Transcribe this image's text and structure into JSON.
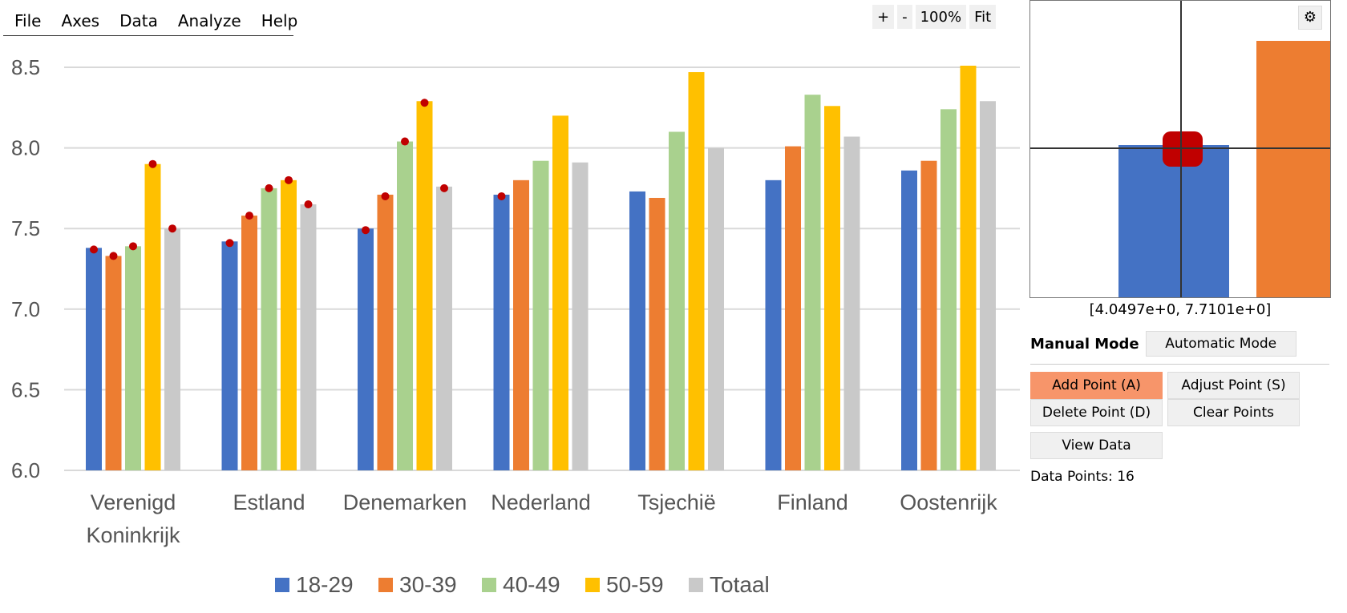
{
  "menu": {
    "items": [
      "File",
      "Axes",
      "Data",
      "Analyze",
      "Help"
    ]
  },
  "zoom": {
    "plus": "+",
    "minus": "-",
    "level": "100%",
    "fit": "Fit"
  },
  "loupe": {
    "settings_icon": "gear-icon",
    "settings_glyph": "⚙"
  },
  "coords": "[4.0497e+0, 7.7101e+0]",
  "mode": {
    "manual_label": "Manual Mode",
    "automatic_button": "Automatic Mode"
  },
  "buttons": {
    "add_point": "Add Point (A)",
    "adjust_point": "Adjust Point (S)",
    "delete_point": "Delete Point (D)",
    "clear_points": "Clear Points",
    "view_data": "View Data"
  },
  "status": {
    "data_points": "Data Points: 16"
  },
  "colors": {
    "accent_active": "#f7956a",
    "marker": "#c00000"
  },
  "chart_data": {
    "type": "bar",
    "categories": [
      [
        "Verenigd",
        "Koninkrijk"
      ],
      [
        "Estland"
      ],
      [
        "Denemarken"
      ],
      [
        "Nederland"
      ],
      [
        "Tsjechië"
      ],
      [
        "Finland"
      ],
      [
        "Oostenrijk"
      ]
    ],
    "series": [
      {
        "name": "18-29",
        "color": "#4472c4",
        "values": [
          7.38,
          7.42,
          7.5,
          7.71,
          7.73,
          7.8,
          7.86
        ]
      },
      {
        "name": "30-39",
        "color": "#ed7d31",
        "values": [
          7.33,
          7.58,
          7.71,
          7.8,
          7.69,
          8.01,
          7.92
        ]
      },
      {
        "name": "40-49",
        "color": "#a9d18e",
        "values": [
          7.39,
          7.75,
          8.04,
          7.92,
          8.1,
          8.33,
          8.24
        ]
      },
      {
        "name": "50-59",
        "color": "#ffc000",
        "values": [
          7.9,
          7.8,
          8.29,
          8.2,
          8.47,
          8.26,
          8.51
        ]
      },
      {
        "name": "Totaal",
        "color": "#c9c9c9",
        "values": [
          7.5,
          7.65,
          7.76,
          7.91,
          8.0,
          8.07,
          8.29
        ]
      }
    ],
    "ylim": [
      6.0,
      8.5
    ],
    "yticks": [
      "6.0",
      "6.5",
      "7.0",
      "7.5",
      "8.0",
      "8.5"
    ],
    "grid": true,
    "legend": "bottom",
    "markers": [
      {
        "category": 0,
        "series": 0,
        "value": 7.37
      },
      {
        "category": 0,
        "series": 1,
        "value": 7.33
      },
      {
        "category": 0,
        "series": 2,
        "value": 7.39
      },
      {
        "category": 0,
        "series": 3,
        "value": 7.9
      },
      {
        "category": 0,
        "series": 4,
        "value": 7.5
      },
      {
        "category": 1,
        "series": 0,
        "value": 7.41
      },
      {
        "category": 1,
        "series": 1,
        "value": 7.58
      },
      {
        "category": 1,
        "series": 2,
        "value": 7.75
      },
      {
        "category": 1,
        "series": 3,
        "value": 7.8
      },
      {
        "category": 1,
        "series": 4,
        "value": 7.65
      },
      {
        "category": 2,
        "series": 0,
        "value": 7.49
      },
      {
        "category": 2,
        "series": 1,
        "value": 7.7
      },
      {
        "category": 2,
        "series": 2,
        "value": 8.04
      },
      {
        "category": 2,
        "series": 3,
        "value": 8.28
      },
      {
        "category": 2,
        "series": 4,
        "value": 7.75
      },
      {
        "category": 3,
        "series": 0,
        "value": 7.7
      }
    ]
  }
}
